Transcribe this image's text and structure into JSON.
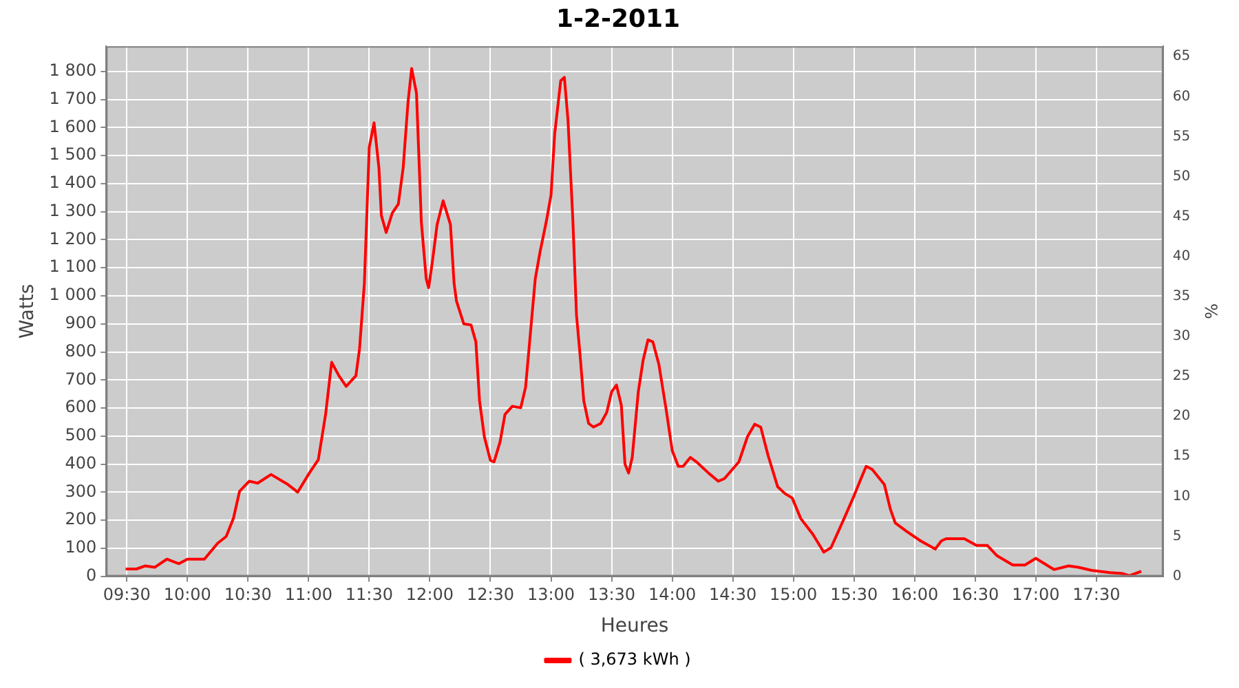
{
  "chart_data": {
    "type": "line",
    "title": "1-2-2011",
    "xlabel": "Heures",
    "ylabel": "Watts",
    "y2label": "%",
    "xlim": [
      9.33,
      18.05
    ],
    "xticks": [
      {
        "value": 9.5,
        "label": "09:30"
      },
      {
        "value": 10,
        "label": "10:00"
      },
      {
        "value": 10.5,
        "label": "10:30"
      },
      {
        "value": 11,
        "label": "11:00"
      },
      {
        "value": 11.5,
        "label": "11:30"
      },
      {
        "value": 12,
        "label": "12:00"
      },
      {
        "value": 12.5,
        "label": "12:30"
      },
      {
        "value": 13,
        "label": "13:00"
      },
      {
        "value": 13.5,
        "label": "13:30"
      },
      {
        "value": 14,
        "label": "14:00"
      },
      {
        "value": 14.5,
        "label": "14:30"
      },
      {
        "value": 15,
        "label": "15:00"
      },
      {
        "value": 15.5,
        "label": "15:30"
      },
      {
        "value": 16,
        "label": "16:00"
      },
      {
        "value": 16.5,
        "label": "16:30"
      },
      {
        "value": 17,
        "label": "17:00"
      },
      {
        "value": 17.5,
        "label": "17:30"
      }
    ],
    "ylim": [
      0,
      1890
    ],
    "yticks": [
      0,
      100,
      200,
      300,
      400,
      500,
      600,
      700,
      800,
      900,
      {
        "value": 1000,
        "label": "1 000"
      },
      {
        "value": 1100,
        "label": "1 100"
      },
      {
        "value": 1200,
        "label": "1 200"
      },
      {
        "value": 1300,
        "label": "1 300"
      },
      {
        "value": 1400,
        "label": "1 400"
      },
      {
        "value": 1500,
        "label": "1 500"
      },
      {
        "value": 1600,
        "label": "1 600"
      },
      {
        "value": 1700,
        "label": "1 700"
      },
      {
        "value": 1800,
        "label": "1 800"
      }
    ],
    "y2lim": [
      0,
      66.3
    ],
    "y2ticks": [
      0,
      5,
      10,
      15,
      20,
      25,
      30,
      35,
      40,
      45,
      50,
      55,
      60,
      65
    ],
    "grid": true,
    "legend": "bottom",
    "series": [
      {
        "name": "( 3,673 kWh )",
        "color": "#ff0000",
        "x": [
          9.49,
          9.58,
          9.65,
          9.73,
          9.83,
          9.93,
          10.0,
          10.14,
          10.25,
          10.32,
          10.38,
          10.43,
          10.51,
          10.58,
          10.69,
          10.83,
          10.91,
          11.01,
          11.08,
          11.14,
          11.19,
          11.25,
          11.31,
          11.39,
          11.42,
          11.46,
          11.5,
          11.54,
          11.58,
          11.6,
          11.64,
          11.69,
          11.74,
          11.78,
          11.82,
          11.85,
          11.89,
          11.93,
          11.97,
          11.99,
          12.02,
          12.06,
          12.11,
          12.17,
          12.2,
          12.22,
          12.28,
          12.34,
          12.38,
          12.41,
          12.45,
          12.5,
          12.53,
          12.58,
          12.62,
          12.68,
          12.75,
          12.79,
          12.84,
          12.87,
          12.91,
          12.96,
          13.0,
          13.03,
          13.08,
          13.11,
          13.14,
          13.18,
          13.21,
          13.24,
          13.27,
          13.31,
          13.35,
          13.41,
          13.46,
          13.5,
          13.54,
          13.58,
          13.61,
          13.64,
          13.67,
          13.72,
          13.76,
          13.8,
          13.84,
          13.89,
          13.95,
          14.0,
          14.05,
          14.09,
          14.15,
          14.2,
          14.3,
          14.38,
          14.43,
          14.55,
          14.62,
          14.68,
          14.73,
          14.79,
          14.87,
          14.93,
          14.99,
          15.06,
          15.16,
          15.25,
          15.31,
          15.41,
          15.5,
          15.56,
          15.6,
          15.65,
          15.75,
          15.8,
          15.84,
          15.94,
          16.05,
          16.17,
          16.22,
          16.26,
          16.41,
          16.51,
          16.6,
          16.68,
          16.81,
          16.91,
          17.0,
          17.15,
          17.27,
          17.35,
          17.46,
          17.61,
          17.71,
          17.77,
          17.82,
          17.87
        ],
        "values": [
          26,
          26,
          37,
          32,
          61,
          45,
          61,
          61,
          118,
          142,
          207,
          303,
          339,
          332,
          363,
          327,
          300,
          371,
          416,
          577,
          763,
          715,
          677,
          715,
          811,
          1045,
          1529,
          1617,
          1456,
          1287,
          1226,
          1295,
          1327,
          1456,
          1690,
          1811,
          1722,
          1263,
          1061,
          1029,
          1118,
          1254,
          1339,
          1254,
          1045,
          981,
          900,
          896,
          836,
          626,
          497,
          413,
          408,
          480,
          577,
          606,
          601,
          674,
          916,
          1061,
          1158,
          1263,
          1359,
          1577,
          1767,
          1779,
          1626,
          1271,
          932,
          787,
          626,
          545,
          532,
          545,
          585,
          658,
          682,
          610,
          400,
          368,
          424,
          658,
          771,
          843,
          836,
          755,
          594,
          448,
          392,
          392,
          424,
          408,
          368,
          339,
          348,
          408,
          497,
          542,
          532,
          432,
          319,
          295,
          279,
          206,
          150,
          86,
          102,
          198,
          287,
          351,
          392,
          381,
          327,
          239,
          190,
          158,
          126,
          97,
          126,
          134,
          134,
          110,
          110,
          73,
          40,
          40,
          64,
          24,
          37,
          32,
          21,
          13,
          10,
          2,
          10,
          18
        ]
      }
    ]
  }
}
